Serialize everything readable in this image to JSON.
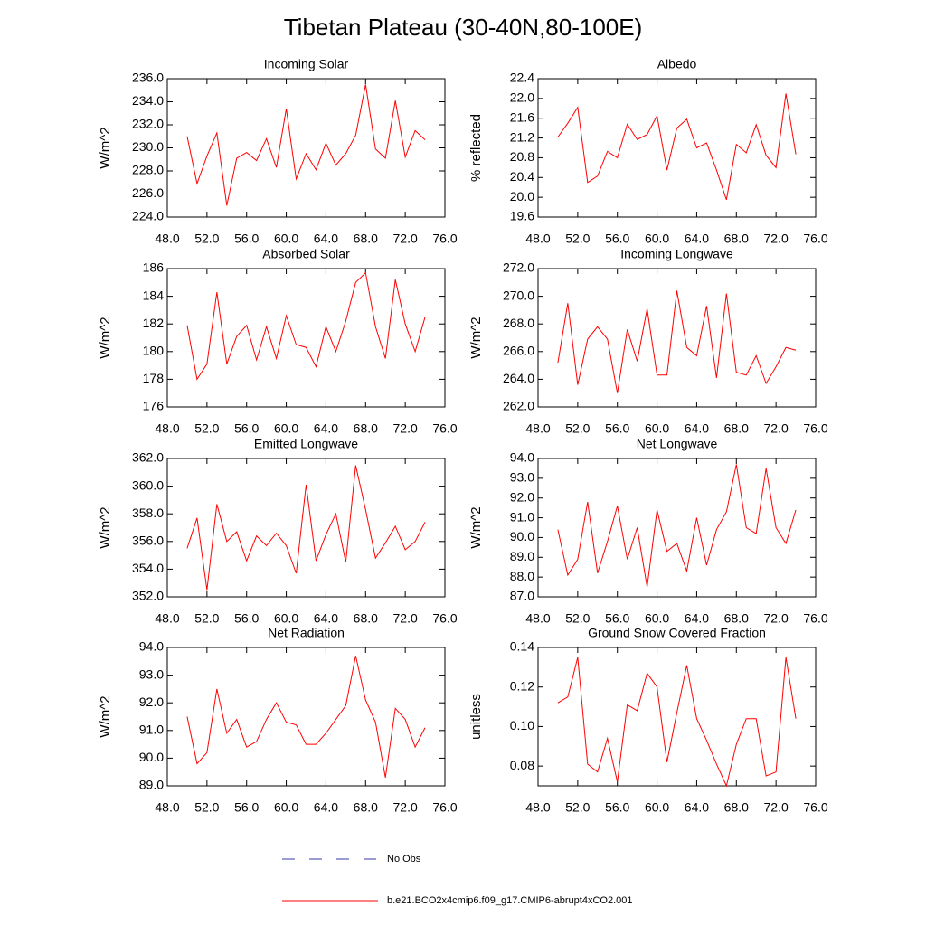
{
  "title": "Tibetan Plateau (30-40N,80-100E)",
  "legend": [
    {
      "name": "No Obs",
      "color": "#3a3aa8",
      "dashed": true
    },
    {
      "name": "b.e21.BCO2x4cmip6.f09_g17.CMIP6-abrupt4xCO2.001",
      "color": "#ff0000",
      "dashed": false
    }
  ],
  "chart_data": [
    {
      "type": "line",
      "title": "Incoming Solar",
      "y_label": "W/m^2",
      "color": "#ff0000",
      "x": [
        50,
        51,
        52,
        53,
        54,
        55,
        56,
        57,
        58,
        59,
        60,
        61,
        62,
        63,
        64,
        65,
        66,
        67,
        68,
        69,
        70,
        71,
        72,
        73,
        74
      ],
      "values": [
        231.0,
        226.9,
        229.3,
        231.3,
        225.0,
        229.1,
        229.6,
        228.9,
        230.8,
        228.3,
        233.4,
        227.3,
        229.5,
        228.1,
        230.4,
        228.5,
        229.5,
        231.1,
        235.5,
        229.9,
        229.1,
        234.1,
        229.2,
        231.5,
        230.7
      ],
      "xlim": [
        48,
        76
      ],
      "xticks": [
        {
          "value": 48,
          "label": "48.0"
        },
        {
          "value": 52,
          "label": "52.0"
        },
        {
          "value": 56,
          "label": "56.0"
        },
        {
          "value": 60,
          "label": "60.0"
        },
        {
          "value": 64,
          "label": "64.0"
        },
        {
          "value": 68,
          "label": "68.0"
        },
        {
          "value": 72,
          "label": "72.0"
        },
        {
          "value": 76,
          "label": "76.0"
        }
      ],
      "ylim": [
        224,
        236
      ],
      "yticks": [
        {
          "value": 224,
          "label": "224.0"
        },
        {
          "value": 226,
          "label": "226.0"
        },
        {
          "value": 228,
          "label": "228.0"
        },
        {
          "value": 230,
          "label": "230.0"
        },
        {
          "value": 232,
          "label": "232.0"
        },
        {
          "value": 234,
          "label": "234.0"
        },
        {
          "value": 236,
          "label": "236.0"
        }
      ]
    },
    {
      "type": "line",
      "title": "Albedo",
      "y_label": "% reflected",
      "color": "#ff0000",
      "x": [
        50,
        51,
        52,
        53,
        54,
        55,
        56,
        57,
        58,
        59,
        60,
        61,
        62,
        63,
        64,
        65,
        66,
        67,
        68,
        69,
        70,
        71,
        72,
        73,
        74
      ],
      "values": [
        21.22,
        21.5,
        21.82,
        20.3,
        20.43,
        20.93,
        20.8,
        21.48,
        21.17,
        21.27,
        21.65,
        20.55,
        21.4,
        21.58,
        21.0,
        21.1,
        20.55,
        19.95,
        21.07,
        20.9,
        21.47,
        20.85,
        20.6,
        22.1,
        20.87
      ],
      "xlim": [
        48,
        76
      ],
      "xticks": [
        {
          "value": 48,
          "label": "48.0"
        },
        {
          "value": 52,
          "label": "52.0"
        },
        {
          "value": 56,
          "label": "56.0"
        },
        {
          "value": 60,
          "label": "60.0"
        },
        {
          "value": 64,
          "label": "64.0"
        },
        {
          "value": 68,
          "label": "68.0"
        },
        {
          "value": 72,
          "label": "72.0"
        },
        {
          "value": 76,
          "label": "76.0"
        }
      ],
      "ylim": [
        19.6,
        22.4
      ],
      "yticks": [
        19.6,
        {
          "value": 20,
          "label": "20.0"
        },
        20.4,
        20.8,
        21.2,
        21.6,
        {
          "value": 22,
          "label": "22.0"
        },
        22.4
      ]
    },
    {
      "type": "line",
      "title": "Absorbed Solar",
      "y_label": "W/m^2",
      "color": "#ff0000",
      "x": [
        50,
        51,
        52,
        53,
        54,
        55,
        56,
        57,
        58,
        59,
        60,
        61,
        62,
        63,
        64,
        65,
        66,
        67,
        68,
        69,
        70,
        71,
        72,
        73,
        74
      ],
      "values": [
        181.9,
        178.0,
        179.1,
        184.3,
        179.1,
        181.1,
        181.9,
        179.4,
        181.8,
        179.5,
        182.6,
        180.5,
        180.3,
        178.9,
        181.8,
        180.0,
        182.2,
        185.0,
        185.7,
        181.8,
        179.5,
        185.2,
        182.0,
        180.0,
        182.5
      ],
      "xlim": [
        48,
        76
      ],
      "xticks": [
        {
          "value": 48,
          "label": "48.0"
        },
        {
          "value": 52,
          "label": "52.0"
        },
        {
          "value": 56,
          "label": "56.0"
        },
        {
          "value": 60,
          "label": "60.0"
        },
        {
          "value": 64,
          "label": "64.0"
        },
        {
          "value": 68,
          "label": "68.0"
        },
        {
          "value": 72,
          "label": "72.0"
        },
        {
          "value": 76,
          "label": "76.0"
        }
      ],
      "ylim": [
        176,
        186
      ],
      "yticks": [
        176,
        178,
        180,
        182,
        184,
        186
      ]
    },
    {
      "type": "line",
      "title": "Incoming Longwave",
      "y_label": "W/m^2",
      "color": "#ff0000",
      "x": [
        50,
        51,
        52,
        53,
        54,
        55,
        56,
        57,
        58,
        59,
        60,
        61,
        62,
        63,
        64,
        65,
        66,
        67,
        68,
        69,
        70,
        71,
        72,
        73,
        74
      ],
      "values": [
        265.2,
        269.5,
        263.6,
        266.9,
        267.8,
        266.9,
        263.0,
        267.6,
        265.3,
        269.1,
        264.3,
        264.3,
        270.4,
        266.3,
        265.7,
        269.3,
        264.1,
        270.2,
        264.5,
        264.3,
        265.7,
        263.7,
        264.9,
        266.3,
        266.1
      ],
      "xlim": [
        48,
        76
      ],
      "xticks": [
        {
          "value": 48,
          "label": "48.0"
        },
        {
          "value": 52,
          "label": "52.0"
        },
        {
          "value": 56,
          "label": "56.0"
        },
        {
          "value": 60,
          "label": "60.0"
        },
        {
          "value": 64,
          "label": "64.0"
        },
        {
          "value": 68,
          "label": "68.0"
        },
        {
          "value": 72,
          "label": "72.0"
        },
        {
          "value": 76,
          "label": "76.0"
        }
      ],
      "ylim": [
        262,
        272
      ],
      "yticks": [
        {
          "value": 262,
          "label": "262.0"
        },
        {
          "value": 264,
          "label": "264.0"
        },
        {
          "value": 266,
          "label": "266.0"
        },
        {
          "value": 268,
          "label": "268.0"
        },
        {
          "value": 270,
          "label": "270.0"
        },
        {
          "value": 272,
          "label": "272.0"
        }
      ]
    },
    {
      "type": "line",
      "title": "Emitted Longwave",
      "y_label": "W/m^2",
      "color": "#ff0000",
      "x": [
        50,
        51,
        52,
        53,
        54,
        55,
        56,
        57,
        58,
        59,
        60,
        61,
        62,
        63,
        64,
        65,
        66,
        67,
        68,
        69,
        70,
        71,
        72,
        73,
        74
      ],
      "values": [
        355.5,
        357.7,
        352.5,
        358.7,
        356.0,
        356.7,
        354.6,
        356.4,
        355.7,
        356.6,
        355.7,
        353.7,
        360.1,
        354.6,
        356.5,
        358.0,
        354.5,
        361.5,
        358.3,
        354.8,
        355.9,
        357.1,
        355.4,
        356.0,
        357.4
      ],
      "xlim": [
        48,
        76
      ],
      "xticks": [
        {
          "value": 48,
          "label": "48.0"
        },
        {
          "value": 52,
          "label": "52.0"
        },
        {
          "value": 56,
          "label": "56.0"
        },
        {
          "value": 60,
          "label": "60.0"
        },
        {
          "value": 64,
          "label": "64.0"
        },
        {
          "value": 68,
          "label": "68.0"
        },
        {
          "value": 72,
          "label": "72.0"
        },
        {
          "value": 76,
          "label": "76.0"
        }
      ],
      "ylim": [
        352,
        362
      ],
      "yticks": [
        {
          "value": 352,
          "label": "352.0"
        },
        {
          "value": 354,
          "label": "354.0"
        },
        {
          "value": 356,
          "label": "356.0"
        },
        {
          "value": 358,
          "label": "358.0"
        },
        {
          "value": 360,
          "label": "360.0"
        },
        {
          "value": 362,
          "label": "362.0"
        }
      ]
    },
    {
      "type": "line",
      "title": "Net Longwave",
      "y_label": "W/m^2",
      "color": "#ff0000",
      "x": [
        50,
        51,
        52,
        53,
        54,
        55,
        56,
        57,
        58,
        59,
        60,
        61,
        62,
        63,
        64,
        65,
        66,
        67,
        68,
        69,
        70,
        71,
        72,
        73,
        74
      ],
      "values": [
        90.4,
        88.1,
        88.9,
        91.8,
        88.2,
        89.8,
        91.6,
        88.9,
        90.5,
        87.5,
        91.4,
        89.3,
        89.7,
        88.3,
        91.0,
        88.6,
        90.4,
        91.3,
        93.7,
        90.5,
        90.2,
        93.5,
        90.5,
        89.7,
        91.4
      ],
      "xlim": [
        48,
        76
      ],
      "xticks": [
        {
          "value": 48,
          "label": "48.0"
        },
        {
          "value": 52,
          "label": "52.0"
        },
        {
          "value": 56,
          "label": "56.0"
        },
        {
          "value": 60,
          "label": "60.0"
        },
        {
          "value": 64,
          "label": "64.0"
        },
        {
          "value": 68,
          "label": "68.0"
        },
        {
          "value": 72,
          "label": "72.0"
        },
        {
          "value": 76,
          "label": "76.0"
        }
      ],
      "ylim": [
        87,
        94
      ],
      "yticks": [
        {
          "value": 87,
          "label": "87.0"
        },
        {
          "value": 88,
          "label": "88.0"
        },
        {
          "value": 89,
          "label": "89.0"
        },
        {
          "value": 90,
          "label": "90.0"
        },
        {
          "value": 91,
          "label": "91.0"
        },
        {
          "value": 92,
          "label": "92.0"
        },
        {
          "value": 93,
          "label": "93.0"
        },
        {
          "value": 94,
          "label": "94.0"
        }
      ]
    },
    {
      "type": "line",
      "title": "Net Radiation",
      "y_label": "W/m^2",
      "color": "#ff0000",
      "x": [
        50,
        51,
        52,
        53,
        54,
        55,
        56,
        57,
        58,
        59,
        60,
        61,
        62,
        63,
        64,
        65,
        66,
        67,
        68,
        69,
        70,
        71,
        72,
        73,
        74
      ],
      "values": [
        91.5,
        89.8,
        90.2,
        92.5,
        90.9,
        91.4,
        90.4,
        90.6,
        91.4,
        92.0,
        91.3,
        91.2,
        90.5,
        90.5,
        90.9,
        91.4,
        91.9,
        93.7,
        92.1,
        91.3,
        89.3,
        91.8,
        91.4,
        90.4,
        91.1
      ],
      "xlim": [
        48,
        76
      ],
      "xticks": [
        {
          "value": 48,
          "label": "48.0"
        },
        {
          "value": 52,
          "label": "52.0"
        },
        {
          "value": 56,
          "label": "56.0"
        },
        {
          "value": 60,
          "label": "60.0"
        },
        {
          "value": 64,
          "label": "64.0"
        },
        {
          "value": 68,
          "label": "68.0"
        },
        {
          "value": 72,
          "label": "72.0"
        },
        {
          "value": 76,
          "label": "76.0"
        }
      ],
      "ylim": [
        89,
        94
      ],
      "yticks": [
        {
          "value": 89,
          "label": "89.0"
        },
        {
          "value": 90,
          "label": "90.0"
        },
        {
          "value": 91,
          "label": "91.0"
        },
        {
          "value": 92,
          "label": "92.0"
        },
        {
          "value": 93,
          "label": "93.0"
        },
        {
          "value": 94,
          "label": "94.0"
        }
      ]
    },
    {
      "type": "line",
      "title": "Ground Snow Covered Fraction",
      "y_label": "unitless",
      "color": "#ff0000",
      "x": [
        50,
        51,
        52,
        53,
        54,
        55,
        56,
        57,
        58,
        59,
        60,
        61,
        62,
        63,
        64,
        65,
        66,
        67,
        68,
        69,
        70,
        71,
        72,
        73,
        74
      ],
      "values": [
        0.112,
        0.115,
        0.135,
        0.081,
        0.077,
        0.094,
        0.072,
        0.111,
        0.108,
        0.127,
        0.12,
        0.082,
        0.107,
        0.131,
        0.104,
        0.093,
        0.081,
        0.07,
        0.091,
        0.104,
        0.104,
        0.075,
        0.077,
        0.135,
        0.104
      ],
      "xlim": [
        48,
        76
      ],
      "xticks": [
        {
          "value": 48,
          "label": "48.0"
        },
        {
          "value": 52,
          "label": "52.0"
        },
        {
          "value": 56,
          "label": "56.0"
        },
        {
          "value": 60,
          "label": "60.0"
        },
        {
          "value": 64,
          "label": "64.0"
        },
        {
          "value": 68,
          "label": "68.0"
        },
        {
          "value": 72,
          "label": "72.0"
        },
        {
          "value": 76,
          "label": "76.0"
        }
      ],
      "ylim": [
        0.07,
        0.14
      ],
      "yticks": [
        0.08,
        {
          "value": 0.1,
          "label": "0.10"
        },
        0.12,
        0.14
      ]
    }
  ]
}
